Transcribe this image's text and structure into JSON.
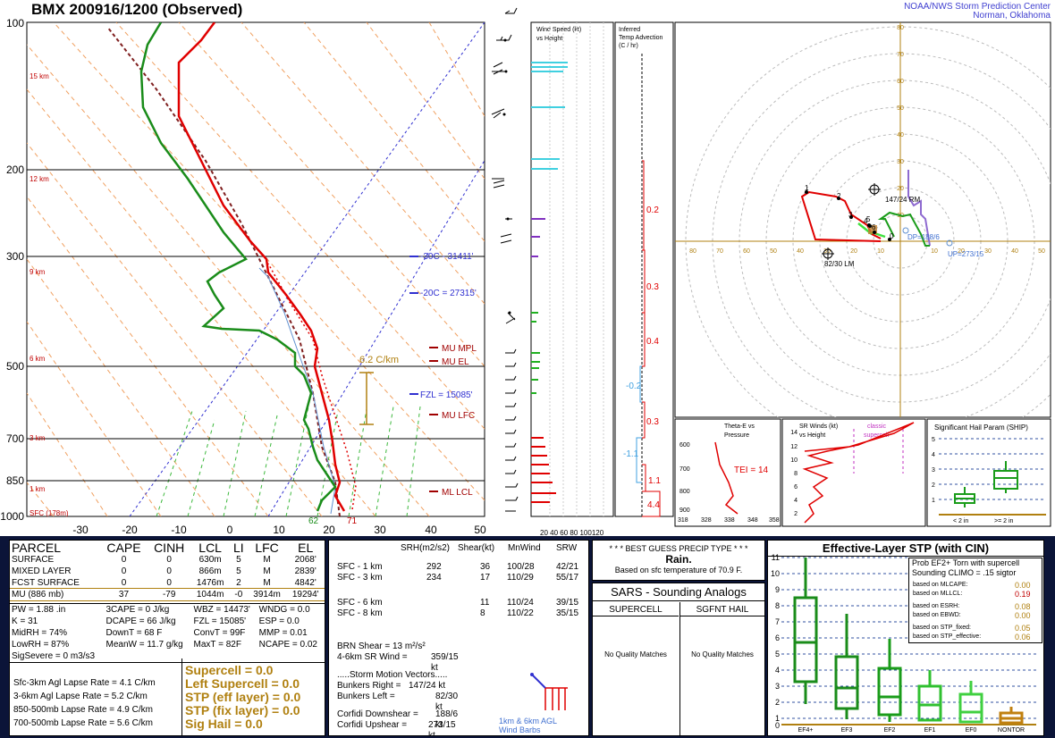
{
  "header": {
    "title": "BMX   200916/1200  (Observed)",
    "credit_line1": "NOAA/NWS Storm Prediction Center",
    "credit_line2": "Norman, Oklahoma"
  },
  "skewt": {
    "pressure_labels": [
      "100",
      "200",
      "300",
      "500",
      "700",
      "850",
      "1000"
    ],
    "height_labels": [
      "15 km",
      "12 km",
      "9 km",
      "6 km",
      "3 km",
      "1 km",
      "SFC (178m)"
    ],
    "temp_labels": [
      "-30",
      "-20",
      "-10",
      "0",
      "10",
      "20",
      "30",
      "40",
      "50"
    ],
    "annotations": {
      "minus30": "-30C - 31411'",
      "minus20": "-20C = 27315'",
      "fzl": "FZL = 15085'",
      "mu_mpl": "MU  MPL",
      "mu_el": "MU  EL",
      "mu_lfc": "MU  LFC",
      "ml_lcl": "ML  LCL",
      "lapse": "6.2 C/km",
      "sfc_td": "62",
      "sfc_t": "71"
    }
  },
  "wind_speed_panel": {
    "title_line1": "Wind Speed (kt)",
    "title_line2": "vs Height",
    "axis": "20 40 60 80 100120"
  },
  "temp_adv_panel": {
    "title_line1": "Inferred",
    "title_line2": "Temp Advection",
    "title_line3": "(C / hr)",
    "values": [
      "0.2",
      "0.3",
      "0.4",
      "-0.2",
      "0.3",
      "-1.1",
      "1.1",
      "4.4"
    ]
  },
  "hodograph": {
    "ring_labels_y": [
      "80",
      "70",
      "60",
      "50",
      "40",
      "30",
      "20",
      "10"
    ],
    "ring_labels_x": [
      "80",
      "70",
      "60",
      "50",
      "40",
      "30",
      "20",
      "10",
      "10",
      "20",
      "30",
      "40",
      "50"
    ],
    "rm_label": "147/24 RM",
    "lm_label": "82/30 LM",
    "dp_label": "DP=188/6",
    "up_label": "UP=273/15",
    "points": [
      "1",
      "2",
      "3",
      "4",
      "5",
      "6",
      "0"
    ]
  },
  "thetae_panel": {
    "title_line1": "Theta-E vs",
    "title_line2": "Pressure",
    "y_labels": [
      "600",
      "700",
      "800",
      "900"
    ],
    "x_labels": [
      "318",
      "328",
      "338",
      "348",
      "358"
    ],
    "tei": "TEI = 14"
  },
  "srwind_panel": {
    "title_line1": "SR Winds (kt)",
    "title_line2": "vs Height",
    "classic1": "classic",
    "classic2": "supercell",
    "y_labels": [
      "14",
      "12",
      "10",
      "8",
      "6",
      "4",
      "2"
    ]
  },
  "ship_panel": {
    "title": "Significant Hail Param (SHIP)",
    "y_labels": [
      "5",
      "4",
      "3",
      "2",
      "1"
    ],
    "lt2": "< 2 in",
    "ge2": ">= 2 in"
  },
  "parcel_table": {
    "headers": [
      "PARCEL",
      "CAPE",
      "CINH",
      "LCL",
      "LI",
      "LFC",
      "EL"
    ],
    "rows": [
      [
        "SURFACE",
        "0",
        "0",
        "630m",
        "5",
        "M",
        "2068'"
      ],
      [
        "MIXED LAYER",
        "0",
        "0",
        "866m",
        "5",
        "M",
        "2839'"
      ],
      [
        "FCST SURFACE",
        "0",
        "0",
        "1476m",
        "2",
        "M",
        "4842'"
      ],
      [
        "MU    (886 mb)",
        "37",
        "-79",
        "1044m",
        "-0",
        "3914m",
        "19294'"
      ]
    ],
    "params": [
      [
        "PW = 1.88 .in",
        "3CAPE = 0 J/kg",
        "WBZ = 14473'",
        "WNDG = 0.0"
      ],
      [
        "K = 31",
        "DCAPE = 66 J/kg",
        "FZL = 15085'",
        "ESP = 0.0"
      ],
      [
        "MidRH = 74%",
        "DownT = 68 F",
        "ConvT = 99F",
        "MMP = 0.01"
      ],
      [
        "LowRH = 87%",
        "MeanW = 11.7 g/kg",
        "MaxT = 82F",
        "NCAPE = 0.02"
      ],
      [
        "SigSevere = 0 m3/s3",
        "",
        "",
        ""
      ]
    ],
    "lapse": [
      [
        "Sfc-3km Agl Lapse Rate =",
        "4.1 C/km"
      ],
      [
        "3-6km Agl Lapse Rate =",
        "5.2 C/km"
      ],
      [
        "850-500mb Lapse Rate =",
        "4.9 C/km"
      ],
      [
        "700-500mb Lapse Rate =",
        "5.6 C/km"
      ]
    ],
    "composite": [
      "Supercell = 0.0",
      "Left Supercell = 0.0",
      "STP (eff layer) = 0.0",
      "STP (fix layer) = 0.0",
      "Sig Hail = 0.0"
    ]
  },
  "kinematics": {
    "headers": [
      "SRH(m2/s2)",
      "Shear(kt)",
      "MnWind",
      "SRW"
    ],
    "rows": [
      [
        "SFC - 1 km",
        "292",
        "36",
        "100/28",
        "42/21"
      ],
      [
        "SFC - 3 km",
        "234",
        "17",
        "110/29",
        "55/17"
      ],
      [
        "SFC - 6 km",
        "",
        "11",
        "110/24",
        "39/15"
      ],
      [
        "SFC - 8 km",
        "",
        "8",
        "110/22",
        "35/15"
      ]
    ],
    "brn": "BRN Shear =  13 m²/s²",
    "wind_46": "4-6km SR Wind =",
    "wind_46_val": "359/15 kt",
    "storm_title": ".....Storm Motion Vectors.....",
    "motions": [
      [
        "Bunkers Right =",
        "147/24 kt"
      ],
      [
        "Bunkers Left =",
        "82/30 kt"
      ],
      [
        "Corfidi Downshear =",
        "188/6 kt"
      ],
      [
        "Corfidi Upshear =",
        "273/15 kt"
      ]
    ],
    "barb_label1": "1km & 6km AGL",
    "barb_label2": "Wind Barbs"
  },
  "precip": {
    "title": "* * * BEST GUESS PRECIP TYPE * * *",
    "value": "Rain.",
    "basis": "Based on sfc temperature of 70.9 F."
  },
  "sars": {
    "title": "SARS - Sounding Analogs",
    "col1": "SUPERCELL",
    "col2": "SGFNT HAIL",
    "msg1": "No Quality Matches",
    "msg2": "No Quality Matches"
  },
  "stp": {
    "title": "Effective-Layer STP (with CIN)",
    "prob_line1": "Prob EF2+ Torn with supercell",
    "prob_line2": "Sounding CLIMO = .15 sigtor",
    "items": [
      [
        "based on MLCAPE:",
        "0.00"
      ],
      [
        "based on MLLCL:",
        "0.19"
      ],
      [
        "based on ESRH:",
        "0.08"
      ],
      [
        "based on EBWD:",
        "0.00"
      ],
      [
        "based on STP_fixed:",
        "0.05"
      ],
      [
        "based on STP_effective:",
        "0.06"
      ]
    ],
    "y_labels": [
      "11",
      "10",
      "9",
      "8",
      "7",
      "6",
      "5",
      "4",
      "3",
      "2",
      "1",
      "0"
    ],
    "x_labels": [
      "EF4+",
      "EF3",
      "EF2",
      "EF1",
      "EF0",
      "NONTOR"
    ]
  },
  "colors": {
    "temperature": "#e00000",
    "dewpoint": "#1a8c1a",
    "wetbulb": "#6090d0",
    "hodo_0_3": "#e00000",
    "hodo_3_6": "#1a9c1a",
    "hodo_6_9": "#8e6ad0",
    "gold": "#b08010",
    "panel_bg": "#0b1438"
  }
}
